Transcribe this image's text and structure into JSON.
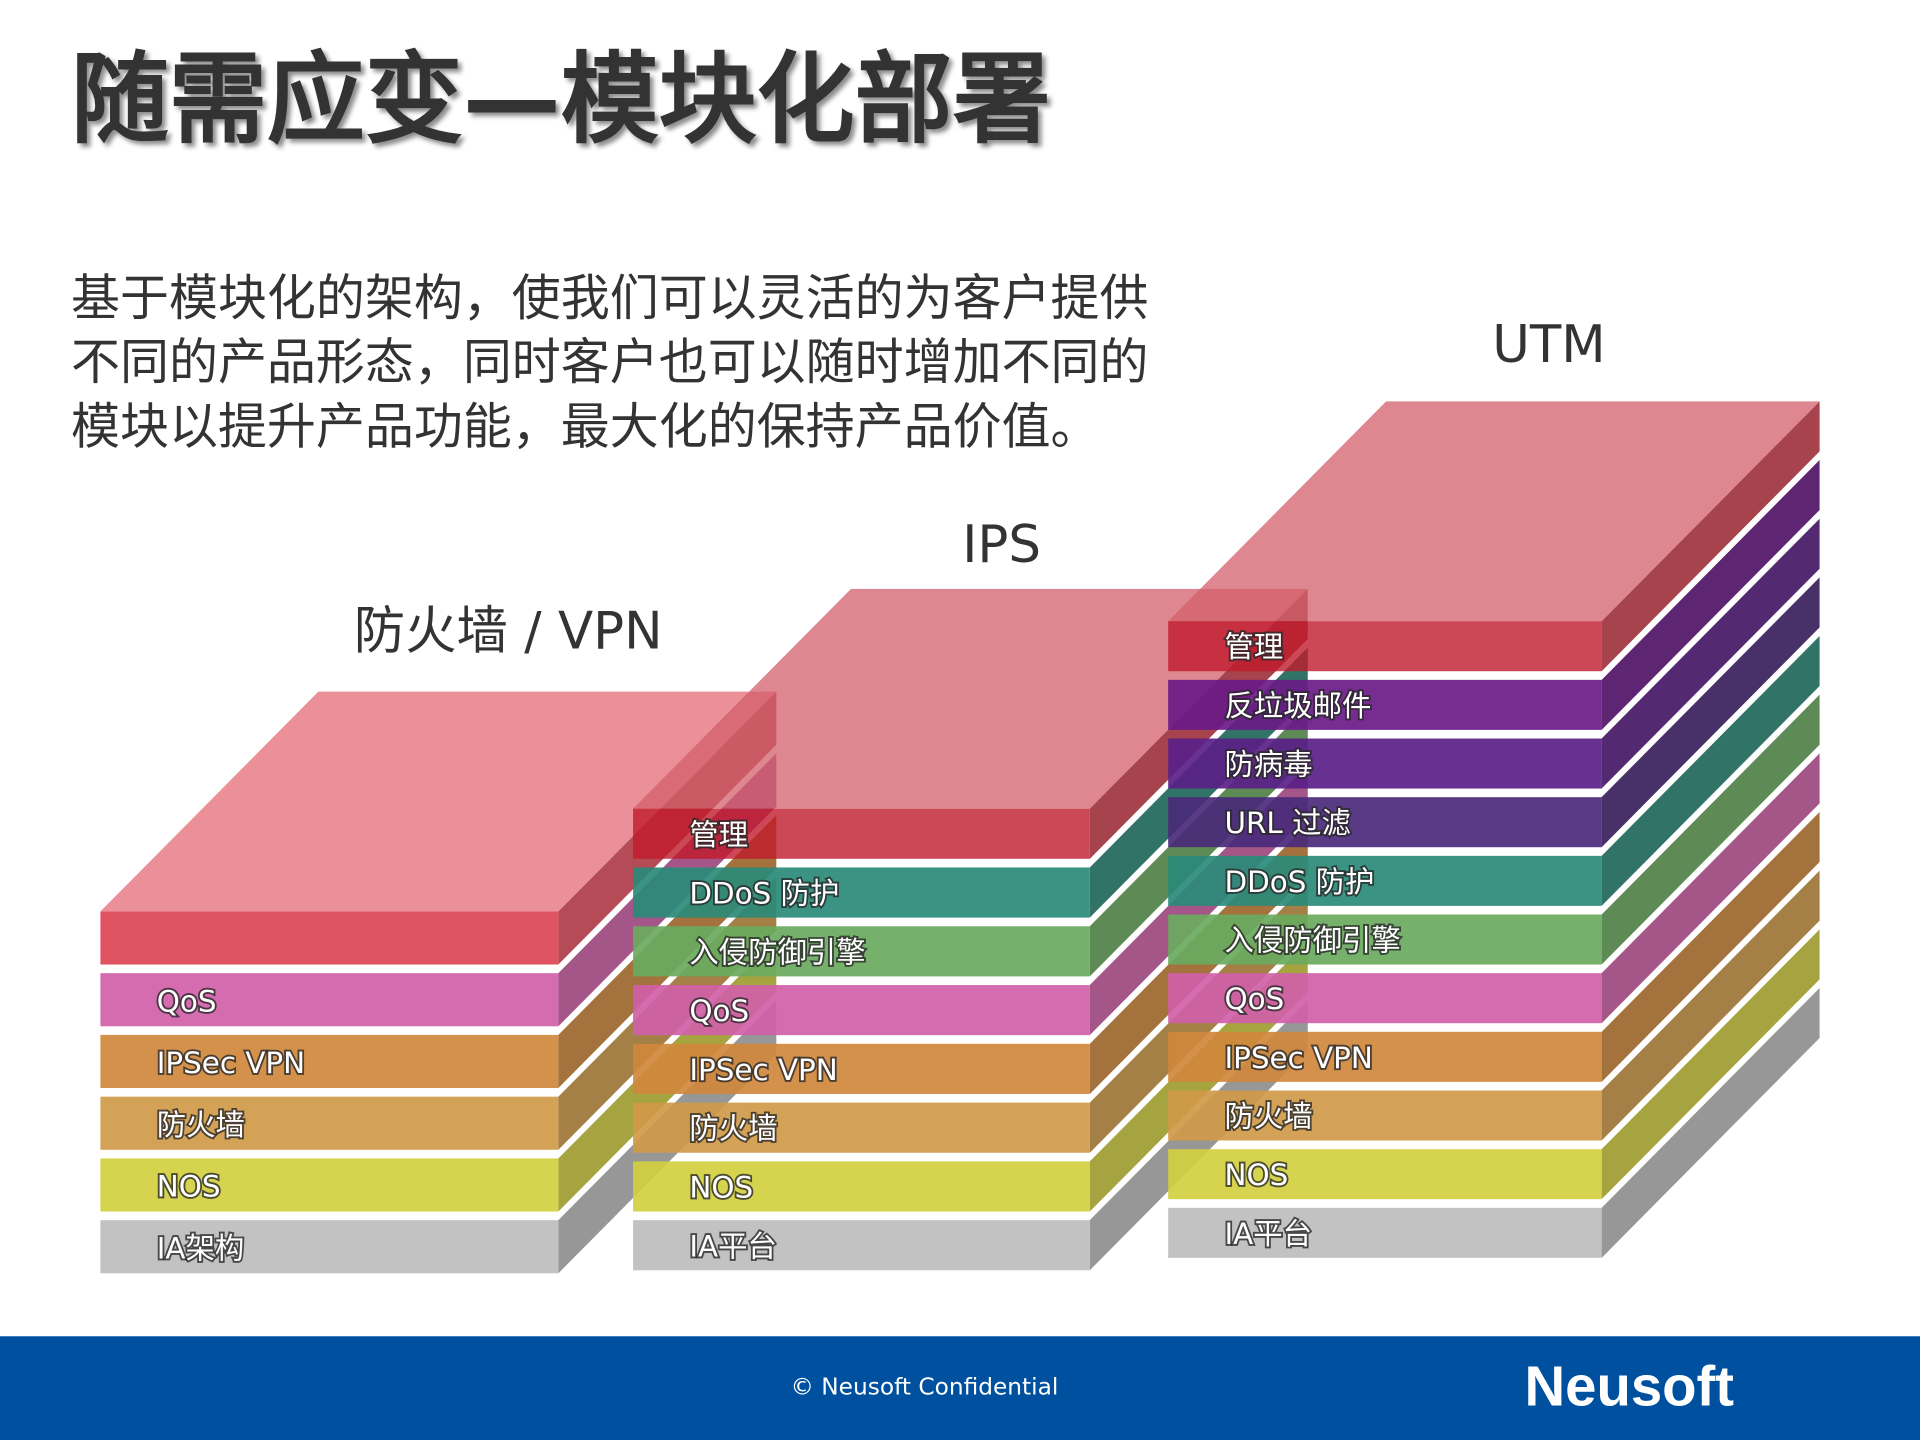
{
  "title": "随需应变—模块化部署",
  "body": {
    "lines": [
      "基于模块化的架构，使我们可以灵活的为客户提供",
      "不同的产品形态，同时客户也可以随时增加不同的",
      "模块以提升产品功能，最大化的保持产品价值。"
    ]
  },
  "stacks": [
    {
      "label": "防火墙 / VPN",
      "cap": true,
      "layers": [
        {
          "label": "IA架构",
          "color": "#bdbdbd"
        },
        {
          "label": "NOS",
          "color": "#d2d040"
        },
        {
          "label": "防火墙",
          "color": "#d09a48"
        },
        {
          "label": "IPSec VPN",
          "color": "#d0883c"
        },
        {
          "label": "QoS",
          "color": "#d060a8"
        }
      ]
    },
    {
      "label": "IPS",
      "cap": false,
      "layers": [
        {
          "label": "IA平台",
          "color": "#bdbdbd"
        },
        {
          "label": "NOS",
          "color": "#d2d040"
        },
        {
          "label": "防火墙",
          "color": "#d09a48"
        },
        {
          "label": "IPSec VPN",
          "color": "#d0883c"
        },
        {
          "label": "QoS",
          "color": "#d060a8"
        },
        {
          "label": "入侵防御引擎",
          "color": "#6aaa60"
        },
        {
          "label": "DDoS 防护",
          "color": "#2a8a78"
        },
        {
          "label": "管理",
          "color": "#c01a2c"
        }
      ]
    },
    {
      "label": "UTM",
      "cap": false,
      "layers": [
        {
          "label": "IA平台",
          "color": "#bdbdbd"
        },
        {
          "label": "NOS",
          "color": "#d2d040"
        },
        {
          "label": "防火墙",
          "color": "#d09a48"
        },
        {
          "label": "IPSec VPN",
          "color": "#d0883c"
        },
        {
          "label": "QoS",
          "color": "#d060a8"
        },
        {
          "label": "入侵防御引擎",
          "color": "#6aaa60"
        },
        {
          "label": "DDoS 防护",
          "color": "#2a8a78"
        },
        {
          "label": "URL 过滤",
          "color": "#4a2a7a"
        },
        {
          "label": "防病毒",
          "color": "#5a2088"
        },
        {
          "label": "反垃圾邮件",
          "color": "#6a1a88"
        },
        {
          "label": "管理",
          "color": "#c01a2c"
        }
      ]
    }
  ],
  "footer": {
    "copyright": "© Neusoft Confidential",
    "logo": "Neusoft"
  }
}
